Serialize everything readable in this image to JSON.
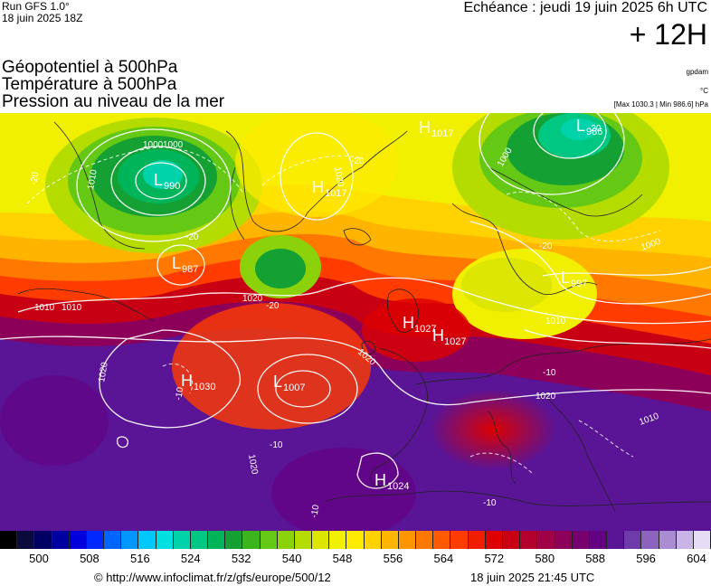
{
  "header": {
    "run": "Run GFS 1.0°",
    "run_time": "18 juin 2025 18Z",
    "echeance": "Echéance : jeudi 19 juin 2025 6h UTC",
    "offset": "+ 12H"
  },
  "titles": {
    "line1": "Géopotentiel à 500hPa",
    "line2": "Température à 500hPa",
    "line3": "Pression au niveau de la mer",
    "unit1": "gpdam",
    "unit2": "°C",
    "unit3": "[Max 1030.3 | Min 986.6] hPa"
  },
  "pressure_centers": [
    {
      "type": "L",
      "value": "990"
    },
    {
      "type": "L",
      "value": "987"
    },
    {
      "type": "H",
      "value": "1017"
    },
    {
      "type": "H",
      "value": "1017"
    },
    {
      "type": "L",
      "value": "986"
    },
    {
      "type": "L",
      "value": "997"
    },
    {
      "type": "H",
      "value": "1027"
    },
    {
      "type": "H",
      "value": "1027"
    },
    {
      "type": "H",
      "value": "1030"
    },
    {
      "type": "L",
      "value": "1007"
    },
    {
      "type": "H",
      "value": "1024"
    }
  ],
  "isobar_labels": [
    "1010",
    "1000",
    "1020",
    "1010",
    "1020",
    "1020",
    "1000",
    "1000",
    "1010",
    "1020",
    "1010",
    "1020",
    "1020",
    "1000",
    "1010"
  ],
  "temp_labels": [
    "-20",
    "-20",
    "-20",
    "-20",
    "-20",
    "-20",
    "-10",
    "-10",
    "-10",
    "-10",
    "-10"
  ],
  "legend": {
    "colors": [
      "#000000",
      "#0a0a3c",
      "#000064",
      "#0000a0",
      "#0000dc",
      "#0028ff",
      "#0064ff",
      "#0096ff",
      "#00c8ff",
      "#00e0e0",
      "#00d2aa",
      "#00c882",
      "#00b45a",
      "#14a032",
      "#3cb41e",
      "#64c814",
      "#8cd20a",
      "#b4dc00",
      "#dce600",
      "#f0f000",
      "#ffeb00",
      "#ffd200",
      "#ffb400",
      "#ff9600",
      "#ff7800",
      "#ff5a00",
      "#ff3c00",
      "#f01e00",
      "#dc0000",
      "#c80014",
      "#b4002d",
      "#a00046",
      "#8c005a",
      "#78006e",
      "#640082",
      "#5a1496",
      "#6e3caa",
      "#8c64be",
      "#aa8cd2",
      "#c8b4e6",
      "#e6dcf5"
    ],
    "ticks": [
      "500",
      "508",
      "516",
      "524",
      "532",
      "540",
      "548",
      "556",
      "564",
      "572",
      "580",
      "588",
      "596",
      "604"
    ]
  },
  "footer": {
    "url": "© http://www.infoclimat.fr/z/gfs/europe/500/12",
    "generated": "18 juin 2025 21:45 UTC"
  }
}
